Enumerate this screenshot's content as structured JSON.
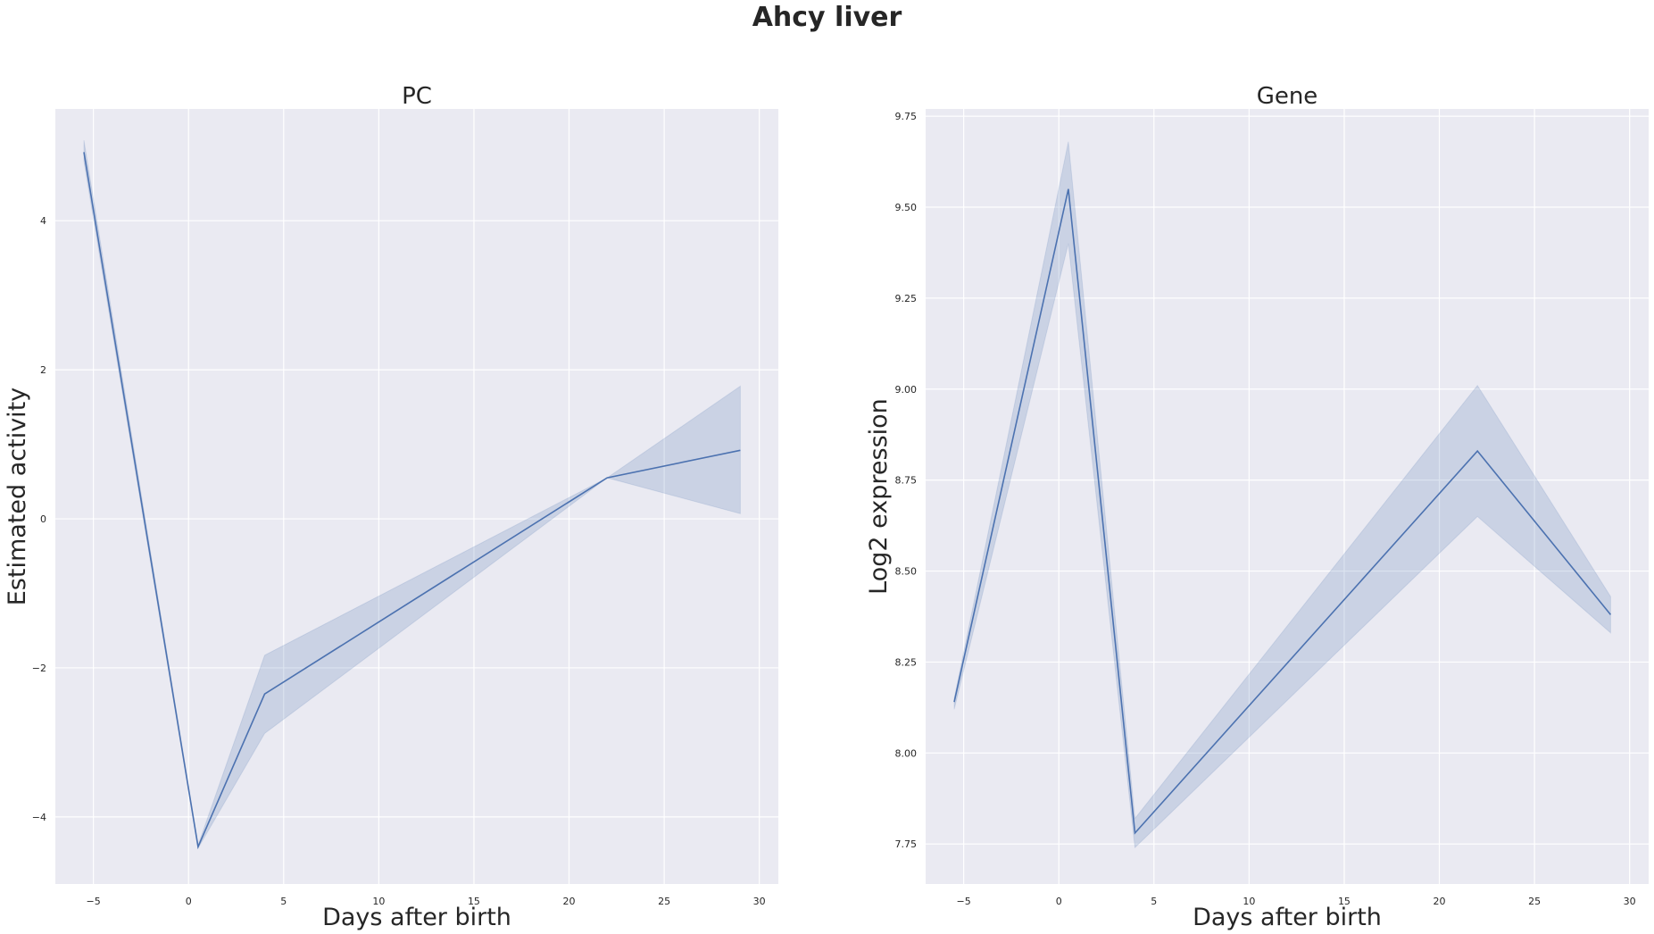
{
  "title": "Ahcy liver",
  "chart_data": [
    {
      "type": "line",
      "title": "PC",
      "xlabel": "Days after birth",
      "ylabel": "Estimated activity",
      "xlim": [
        -7,
        31
      ],
      "ylim": [
        -4.9,
        5.5
      ],
      "xticks": [
        -5,
        0,
        5,
        10,
        15,
        20,
        25,
        30
      ],
      "xtick_labels": [
        "−5",
        "0",
        "5",
        "10",
        "15",
        "20",
        "25",
        "30"
      ],
      "yticks": [
        -4,
        -2,
        0,
        2,
        4
      ],
      "ytick_labels": [
        "−4",
        "−2",
        "0",
        "2",
        "4"
      ],
      "grid": true,
      "color": "#4c72b0",
      "series": [
        {
          "x": [
            -5.5,
            0.5,
            4,
            22,
            29
          ],
          "y": [
            4.92,
            -4.4,
            -2.35,
            0.55,
            0.92
          ],
          "ci_low": [
            4.8,
            -4.42,
            -2.88,
            0.55,
            0.07
          ],
          "ci_high": [
            5.08,
            -4.38,
            -1.83,
            0.55,
            1.78
          ]
        }
      ]
    },
    {
      "type": "line",
      "title": "Gene",
      "xlabel": "Days after birth",
      "ylabel": "Log2 expression",
      "xlim": [
        -7,
        31
      ],
      "ylim": [
        7.64,
        9.77
      ],
      "xticks": [
        -5,
        0,
        5,
        10,
        15,
        20,
        25,
        30
      ],
      "xtick_labels": [
        "−5",
        "0",
        "5",
        "10",
        "15",
        "20",
        "25",
        "30"
      ],
      "yticks": [
        7.75,
        8.0,
        8.25,
        8.5,
        8.75,
        9.0,
        9.25,
        9.5,
        9.75
      ],
      "ytick_labels": [
        "7.75",
        "8.00",
        "8.25",
        "8.50",
        "8.75",
        "9.00",
        "9.25",
        "9.50",
        "9.75"
      ],
      "grid": true,
      "color": "#4c72b0",
      "series": [
        {
          "x": [
            -5.5,
            0.5,
            4,
            22,
            29
          ],
          "y": [
            8.14,
            9.55,
            7.78,
            8.83,
            8.38
          ],
          "ci_low": [
            8.12,
            9.4,
            7.74,
            8.65,
            8.33
          ],
          "ci_high": [
            8.15,
            9.68,
            7.82,
            9.01,
            8.43
          ]
        }
      ]
    }
  ]
}
